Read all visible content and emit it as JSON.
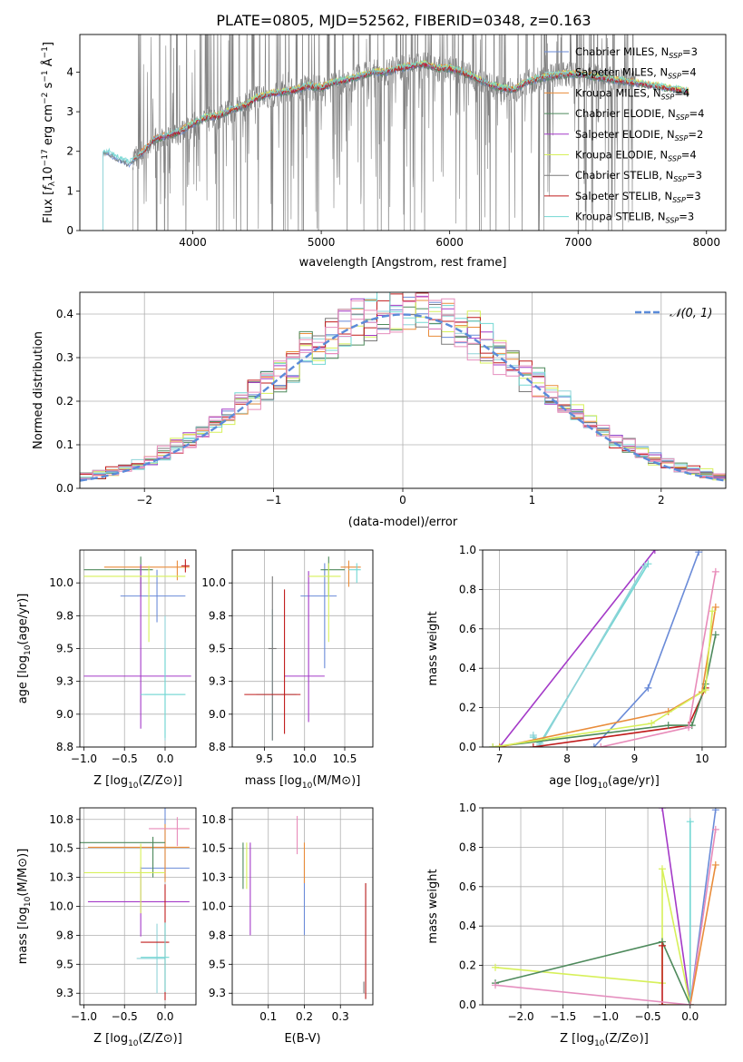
{
  "figure_title": "PLATE=0805, MJD=52562, FIBERID=0348, z=0.163",
  "models": [
    {
      "name": "Chabrier MILES",
      "nssp": "3",
      "color": "#6A8BD8"
    },
    {
      "name": "Salpeter MILES",
      "nssp": "4",
      "color": "#8FD3D8"
    },
    {
      "name": "Kroupa MILES",
      "nssp": "4",
      "color": "#E98C3A"
    },
    {
      "name": "Chabrier ELODIE",
      "nssp": "4",
      "color": "#4E8A5C"
    },
    {
      "name": "Salpeter ELODIE",
      "nssp": "2",
      "color": "#A43AC8"
    },
    {
      "name": "Kroupa ELODIE",
      "nssp": "4",
      "color": "#D7F05A"
    },
    {
      "name": "Chabrier STELIB",
      "nssp": "3",
      "color": "#7A7A7A"
    },
    {
      "name": "Salpeter STELIB",
      "nssp": "3",
      "color": "#C01C1C"
    },
    {
      "name": "Kroupa STELIB",
      "nssp": "3",
      "color": "#72D7D3"
    }
  ],
  "chart_data": [
    {
      "id": "spectrum",
      "type": "line",
      "xlabel": "wavelength [Angstrom, rest frame]",
      "ylabel_parts": [
        "Flux [",
        "f",
        "λ",
        "10",
        "−17",
        " erg cm",
        "−2",
        " s",
        "−1",
        " Å",
        "−1",
        "]"
      ],
      "xlim": [
        3120,
        8150
      ],
      "ylim": [
        0,
        4.95
      ],
      "xticks": [
        4000,
        5000,
        6000,
        7000,
        8000
      ],
      "yticks": [
        0,
        1,
        2,
        3,
        4
      ],
      "legend_suffix": ", N",
      "legend_sub": "SSP",
      "data_color": "#808080",
      "data_range": [
        3530,
        7450
      ],
      "model_shape": {
        "x": [
          3300,
          3330,
          3400,
          3500,
          3600,
          3700,
          3800,
          3900,
          4000,
          4100,
          4200,
          4300,
          4400,
          4500,
          4600,
          4700,
          4800,
          4900,
          5000,
          5100,
          5200,
          5300,
          5400,
          5500,
          5600,
          5700,
          5800,
          5900,
          6000,
          6100,
          6200,
          6300,
          6400,
          6500,
          6600,
          6700,
          6800,
          6900,
          7000,
          7100,
          7200,
          7300,
          7400,
          7500,
          7600,
          7700,
          7800,
          7860
        ],
        "y": [
          1.95,
          2.0,
          1.85,
          1.7,
          1.95,
          2.3,
          2.4,
          2.5,
          2.7,
          2.85,
          2.9,
          3.05,
          3.15,
          3.35,
          3.45,
          3.5,
          3.55,
          3.65,
          3.6,
          3.75,
          3.8,
          3.9,
          4.0,
          4.0,
          4.1,
          4.15,
          4.2,
          4.1,
          4.1,
          4.0,
          3.85,
          3.7,
          3.6,
          3.55,
          3.75,
          3.85,
          3.9,
          3.95,
          3.95,
          3.9,
          3.85,
          3.8,
          3.75,
          3.7,
          3.65,
          3.6,
          3.55,
          3.5
        ]
      }
    },
    {
      "id": "residuals",
      "type": "histogram",
      "xlabel": "(data-model)/error",
      "ylabel": "Normed distribution",
      "xlim": [
        -2.5,
        2.5
      ],
      "ylim": [
        0,
        0.45
      ],
      "xticks": [
        -2,
        -1,
        0,
        1,
        2
      ],
      "yticks": [
        0.0,
        0.1,
        0.2,
        0.3,
        0.4
      ],
      "legend": "𝒩(0, 1)",
      "gauss_color": "#5B8BD9"
    },
    {
      "id": "age-vs-Z",
      "type": "scatter",
      "xlabel": "Z [log10(Z/Z⊙)]",
      "ylabel": "age [log10(age/yr)]",
      "xlim": [
        -1.05,
        0.38
      ],
      "ylim": [
        8.75,
        10.25
      ],
      "xticks": [
        -1.0,
        -0.5,
        0.0
      ],
      "yticks": [
        8.75,
        9.0,
        9.25,
        9.5,
        9.75,
        10.0
      ],
      "points": [
        {
          "x": -0.1,
          "y": 9.9,
          "xerr": [
            0.45,
            0.35
          ],
          "yerr": [
            0.2,
            0.2
          ],
          "model": 0
        },
        {
          "x": 0.0,
          "y": 9.15,
          "xerr": [
            0.25,
            0.25
          ],
          "yerr": [
            0.35,
            0.6
          ],
          "model": 1
        },
        {
          "x": 0.15,
          "y": 10.12,
          "xerr": [
            0.9,
            0.15
          ],
          "yerr": [
            0.1,
            0.05
          ],
          "model": 2
        },
        {
          "x": -0.3,
          "y": 10.1,
          "xerr": [
            0.7,
            0.15
          ],
          "yerr": [
            0.2,
            0.1
          ],
          "model": 3
        },
        {
          "x": -0.3,
          "y": 9.29,
          "xerr": [
            0.7,
            0.62
          ],
          "yerr": [
            0.4,
            0.85
          ],
          "model": 4
        },
        {
          "x": -0.2,
          "y": 10.05,
          "xerr": [
            0.8,
            0.45
          ],
          "yerr": [
            0.5,
            0.08
          ],
          "model": 5
        },
        {
          "x": 0.25,
          "y": 10.13,
          "xerr": [
            0.05,
            0.05
          ],
          "yerr": [
            0.05,
            0.05
          ],
          "model": 7
        },
        {
          "x": 0.0,
          "y": 9.15,
          "xerr": [
            0.3,
            0.25
          ],
          "yerr": [
            0.33,
            0.35
          ],
          "model": 8
        }
      ]
    },
    {
      "id": "age-vs-mass",
      "type": "scatter",
      "xlabel": "mass [log10(M/M⊙)]",
      "ylabel": "",
      "xlim": [
        9.1,
        10.85
      ],
      "ylim": [
        8.75,
        10.25
      ],
      "xticks": [
        9.5,
        10.0,
        10.5
      ],
      "yticks": [
        8.75,
        9.0,
        9.25,
        9.5,
        9.75,
        10.0
      ],
      "points": [
        {
          "x": 10.25,
          "y": 9.9,
          "xerr": [
            0.3,
            0.15
          ],
          "yerr": [
            0.55,
            0.25
          ],
          "model": 0
        },
        {
          "x": 9.6,
          "y": 9.15,
          "xerr": [
            0.2,
            0.3
          ],
          "yerr": [
            0.35,
            0.65
          ],
          "model": 1
        },
        {
          "x": 10.55,
          "y": 10.12,
          "xerr": [
            0.1,
            0.15
          ],
          "yerr": [
            0.15,
            0.05
          ],
          "model": 2
        },
        {
          "x": 10.3,
          "y": 10.1,
          "xerr": [
            0.1,
            0.2
          ],
          "yerr": [
            0.2,
            0.1
          ],
          "model": 3
        },
        {
          "x": 10.05,
          "y": 9.29,
          "xerr": [
            0.3,
            0.2
          ],
          "yerr": [
            0.35,
            0.8
          ],
          "model": 4
        },
        {
          "x": 10.3,
          "y": 10.05,
          "xerr": [
            0.25,
            0.15
          ],
          "yerr": [
            0.5,
            0.1
          ],
          "model": 5
        },
        {
          "x": 9.6,
          "y": 9.5,
          "xerr": [
            0.05,
            0.05
          ],
          "yerr": [
            0.7,
            0.55
          ],
          "model": 6
        },
        {
          "x": 9.75,
          "y": 9.15,
          "xerr": [
            0.5,
            0.2
          ],
          "yerr": [
            0.3,
            0.8
          ],
          "model": 7
        },
        {
          "x": 10.65,
          "y": 10.1,
          "xerr": [
            0.1,
            0.05
          ],
          "yerr": [
            0.1,
            0.05
          ],
          "model": 8
        }
      ]
    },
    {
      "id": "weight-vs-age",
      "type": "line",
      "xlabel": "age [log10(age/yr)]",
      "ylabel": "mass weight",
      "xlim": [
        6.75,
        10.35
      ],
      "ylim": [
        0,
        1.0
      ],
      "xticks": [
        7,
        8,
        9,
        10
      ],
      "yticks": [
        0.0,
        0.2,
        0.4,
        0.6,
        0.8,
        1.0
      ],
      "series": [
        {
          "model": 4,
          "x": [
            7.0,
            9.3
          ],
          "y": [
            0.0,
            1.0
          ]
        },
        {
          "model": 8,
          "x": [
            7.5,
            7.6,
            9.2
          ],
          "y": [
            0.05,
            0.02,
            0.93
          ]
        },
        {
          "model": 1,
          "x": [
            7.5,
            7.6,
            9.15
          ],
          "y": [
            0.06,
            0.01,
            0.92
          ]
        },
        {
          "model": 0,
          "x": [
            8.4,
            9.2,
            9.95
          ],
          "y": [
            0.0,
            0.3,
            0.99
          ]
        },
        {
          "model": 7,
          "x": [
            7.5,
            9.8,
            10.05
          ],
          "y": [
            0.0,
            0.11,
            0.3
          ]
        },
        {
          "model": 3,
          "x": [
            6.9,
            9.5,
            9.85,
            10.05,
            10.2
          ],
          "y": [
            0.0,
            0.11,
            0.11,
            0.32,
            0.57
          ]
        },
        {
          "model": 2,
          "x": [
            7.0,
            9.5,
            10.0,
            10.2
          ],
          "y": [
            0.0,
            0.18,
            0.28,
            0.71
          ]
        },
        {
          "model": 5,
          "x": [
            6.9,
            9.25,
            10.05,
            10.15
          ],
          "y": [
            0.0,
            0.12,
            0.29,
            0.69
          ]
        },
        {
          "model": 9,
          "x": [
            8.5,
            9.8,
            10.2
          ],
          "y": [
            0.0,
            0.1,
            0.89
          ]
        }
      ]
    },
    {
      "id": "mass-vs-Z",
      "type": "scatter",
      "xlabel": "Z [log10(Z/Z⊙)]",
      "ylabel": "mass [log10(M/M⊙)]",
      "xlim": [
        -1.05,
        0.38
      ],
      "ylim": [
        9.15,
        10.85
      ],
      "xticks": [
        -1.0,
        -0.5,
        0.0
      ],
      "yticks": [
        9.25,
        9.5,
        9.75,
        10.0,
        10.25,
        10.5,
        10.75
      ],
      "points": [
        {
          "x": 0.0,
          "y": 10.33,
          "xerr": [
            0.3,
            0.3
          ],
          "yerr": [
            0.1,
            0.55
          ],
          "model": 0
        },
        {
          "x": -0.1,
          "y": 9.55,
          "xerr": [
            0.25,
            0.1
          ],
          "yerr": [
            0.3,
            0.3
          ],
          "model": 1
        },
        {
          "x": 0.0,
          "y": 10.51,
          "xerr": [
            0.95,
            0.3
          ],
          "yerr": [
            0.3,
            0.2
          ],
          "model": 2
        },
        {
          "x": -0.15,
          "y": 10.55,
          "xerr": [
            0.9,
            0.15
          ],
          "yerr": [
            0.3,
            0.05
          ],
          "model": 3
        },
        {
          "x": -0.3,
          "y": 10.04,
          "xerr": [
            0.65,
            0.6
          ],
          "yerr": [
            0.3,
            0.3
          ],
          "model": 4
        },
        {
          "x": -0.3,
          "y": 10.29,
          "xerr": [
            0.7,
            0.3
          ],
          "yerr": [
            0.35,
            0.25
          ],
          "model": 5
        },
        {
          "x": 0.0,
          "y": 9.69,
          "xerr": [
            0.3,
            0.05
          ],
          "yerr": [
            0.5,
            0.5
          ],
          "model": 7
        },
        {
          "x": 0.0,
          "y": 9.56,
          "xerr": [
            0.3,
            0.05
          ],
          "yerr": [
            0.3,
            0.3
          ],
          "model": 8
        },
        {
          "x": 0.15,
          "y": 10.67,
          "xerr": [
            0.35,
            0.15
          ],
          "yerr": [
            0.15,
            0.1
          ],
          "model": 9
        }
      ]
    },
    {
      "id": "mass-vs-EBV",
      "type": "scatter",
      "xlabel": "E(B-V)",
      "ylabel": "",
      "xlim": [
        0.0,
        0.39
      ],
      "ylim": [
        9.15,
        10.85
      ],
      "xticks": [
        0.1,
        0.2,
        0.3
      ],
      "yticks": [
        9.25,
        9.5,
        9.75,
        10.0,
        10.25,
        10.5,
        10.75
      ],
      "points": [
        {
          "x": 0.2,
          "y": 10.1,
          "yerr": [
            0.35,
            0.3
          ],
          "model": 0
        },
        {
          "x": 0.04,
          "y": 10.35,
          "yerr": [
            0.2,
            0.2
          ],
          "model": 5
        },
        {
          "x": 0.05,
          "y": 10.05,
          "yerr": [
            0.3,
            0.5
          ],
          "model": 4
        },
        {
          "x": 0.03,
          "y": 10.35,
          "yerr": [
            0.2,
            0.2
          ],
          "model": 3
        },
        {
          "x": 0.2,
          "y": 10.4,
          "yerr": [
            0.2,
            0.15
          ],
          "model": 2
        },
        {
          "x": 0.18,
          "y": 10.6,
          "yerr": [
            0.15,
            0.18
          ],
          "model": 9
        },
        {
          "x": 0.37,
          "y": 9.7,
          "yerr": [
            0.5,
            0.5
          ],
          "model": 8
        },
        {
          "x": 0.37,
          "y": 9.75,
          "yerr": [
            0.55,
            0.45
          ],
          "model": 7
        },
        {
          "x": 0.365,
          "y": 9.3,
          "yerr": [
            0.05,
            0.05
          ],
          "model": 6
        }
      ]
    },
    {
      "id": "weight-vs-Z",
      "type": "line",
      "xlabel": "Z [log10(Z/Z⊙)]",
      "ylabel": "mass weight",
      "xlim": [
        -2.45,
        0.42
      ],
      "ylim": [
        0,
        1.0
      ],
      "xticks": [
        -2.0,
        -1.5,
        -1.0,
        -0.5,
        0.0
      ],
      "yticks": [
        0.0,
        0.2,
        0.4,
        0.6,
        0.8,
        1.0
      ],
      "series": [
        {
          "model": 4,
          "x": [
            -0.33,
            0.0
          ],
          "y": [
            1.0,
            0.0
          ]
        },
        {
          "model": 0,
          "x": [
            0.0,
            0.3
          ],
          "y": [
            0.0,
            0.99
          ]
        },
        {
          "model": 8,
          "x": [
            0.0,
            0.0
          ],
          "y": [
            0.0,
            0.93
          ]
        },
        {
          "model": 9,
          "x": [
            0.0,
            0.3
          ],
          "y": [
            0.0,
            0.89
          ]
        },
        {
          "model": 2,
          "x": [
            -0.33,
            0.0,
            0.3
          ],
          "y": [
            0.0,
            0.0,
            0.71
          ]
        },
        {
          "model": 5,
          "x": [
            -2.3,
            -0.33,
            -0.33,
            0.0
          ],
          "y": [
            0.19,
            0.11,
            0.69,
            0.0
          ]
        },
        {
          "model": 3,
          "x": [
            -2.3,
            -0.33,
            0.0
          ],
          "y": [
            0.11,
            0.32,
            0.0
          ]
        },
        {
          "model": 7,
          "x": [
            -0.33,
            -0.33
          ],
          "y": [
            0.0,
            0.3
          ]
        },
        {
          "model": 10,
          "x": [
            -2.3,
            0.0
          ],
          "y": [
            0.1,
            0.0
          ]
        }
      ]
    }
  ],
  "extra_colors": [
    "#E88BB9",
    "#E58FBF"
  ]
}
